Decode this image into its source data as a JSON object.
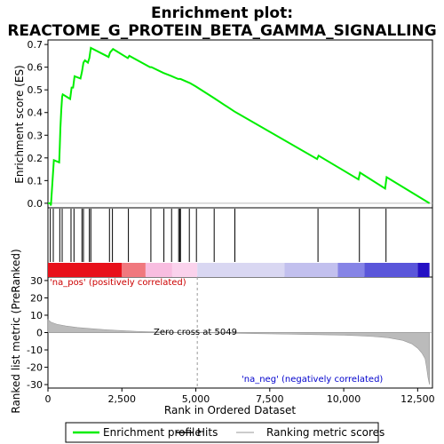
{
  "chart_data": {
    "type": "line",
    "title_line1": "Enrichment plot:",
    "title_line2": "REACTOME_G_PROTEIN_BETA_GAMMA_SIGNALLING",
    "xlabel": "Rank in Ordered Dataset",
    "ylabel_top": "Enrichment score (ES)",
    "ylabel_bottom": "Ranked list metric (PreRanked)",
    "xlim": [
      0,
      13000
    ],
    "x_ticks": [
      0,
      2500,
      5000,
      7500,
      10000,
      12500
    ],
    "x_tick_labels": [
      "0",
      "2,500",
      "5,000",
      "7,500",
      "10,000",
      "12,500"
    ],
    "es_ylim": [
      -0.02,
      0.72
    ],
    "es_ticks": [
      0.0,
      0.1,
      0.2,
      0.3,
      0.4,
      0.5,
      0.6,
      0.7
    ],
    "es_tick_labels": [
      "0.0",
      "0.1",
      "0.2",
      "0.3",
      "0.4",
      "0.5",
      "0.6",
      "0.7"
    ],
    "metric_ylim": [
      -32,
      32
    ],
    "metric_ticks": [
      -30,
      -20,
      -10,
      0,
      10,
      20,
      30
    ],
    "metric_tick_labels": [
      "-30",
      "-20",
      "-10",
      "0",
      "10",
      "20",
      "30"
    ],
    "es_curve": {
      "x": [
        0,
        80,
        100,
        120,
        150,
        180,
        200,
        380,
        400,
        420,
        450,
        480,
        500,
        750,
        800,
        850,
        900,
        1100,
        1150,
        1200,
        1250,
        1350,
        1400,
        1450,
        2050,
        2100,
        2200,
        2700,
        2750,
        3450,
        3500,
        3900,
        4150,
        4400,
        4450,
        4480,
        4800,
        5000,
        5600,
        6300,
        9100,
        9150,
        10500,
        10550,
        11400,
        11450,
        12900
      ],
      "y": [
        0.0,
        0.0,
        -0.01,
        0.03,
        0.09,
        0.15,
        0.19,
        0.18,
        0.25,
        0.33,
        0.41,
        0.47,
        0.48,
        0.46,
        0.51,
        0.51,
        0.56,
        0.55,
        0.58,
        0.62,
        0.63,
        0.62,
        0.64,
        0.685,
        0.645,
        0.665,
        0.68,
        0.64,
        0.65,
        0.6,
        0.6,
        0.575,
        0.562,
        0.548,
        0.548,
        0.548,
        0.53,
        0.515,
        0.465,
        0.405,
        0.195,
        0.21,
        0.105,
        0.135,
        0.065,
        0.115,
        0.0
      ]
    },
    "hits_x": [
      80,
      180,
      400,
      480,
      780,
      880,
      1150,
      1200,
      1400,
      1450,
      2080,
      2180,
      2720,
      3480,
      3920,
      4180,
      4420,
      4460,
      4480,
      4780,
      5020,
      5620,
      6320,
      9130,
      10530,
      11430
    ],
    "metric_curve": {
      "x": [
        0,
        100,
        300,
        600,
        1000,
        1500,
        2000,
        2500,
        3000,
        3500,
        4000,
        4500,
        5049,
        6000,
        7000,
        8000,
        9000,
        10000,
        10500,
        11000,
        11500,
        12000,
        12300,
        12500,
        12650,
        12750,
        12800,
        12850,
        12900
      ],
      "y": [
        7.5,
        6.0,
        4.8,
        3.8,
        2.9,
        2.2,
        1.6,
        1.1,
        0.7,
        0.4,
        0.2,
        0.1,
        0.0,
        -0.3,
        -0.6,
        -0.9,
        -1.2,
        -1.5,
        -1.8,
        -2.3,
        -3.0,
        -4.5,
        -6.5,
        -9.0,
        -12.0,
        -15.0,
        -20.0,
        -26.0,
        -30.0
      ]
    },
    "zero_cross_x": 5049,
    "zero_cross_label": "Zero cross at 5049",
    "pos_label": "'na_pos' (positively correlated)",
    "neg_label": "'na_neg' (negatively correlated)",
    "colorbar_segments": [
      {
        "x0": 0,
        "x1": 2500,
        "color": "#e8101a"
      },
      {
        "x0": 2500,
        "x1": 3300,
        "color": "#f0787e"
      },
      {
        "x0": 3300,
        "x1": 4200,
        "color": "#f8bde0"
      },
      {
        "x0": 4200,
        "x1": 5049,
        "color": "#fad2ec"
      },
      {
        "x0": 5049,
        "x1": 8000,
        "color": "#d9d7f2"
      },
      {
        "x0": 8000,
        "x1": 9800,
        "color": "#c2c0ee"
      },
      {
        "x0": 9800,
        "x1": 10700,
        "color": "#8684e6"
      },
      {
        "x0": 10700,
        "x1": 12500,
        "color": "#5a56da"
      },
      {
        "x0": 12500,
        "x1": 12900,
        "color": "#2410c4"
      }
    ],
    "legend": [
      {
        "label": "Enrichment profile",
        "color": "#00ee00",
        "kind": "line"
      },
      {
        "label": "Hits",
        "color": "#000000",
        "kind": "line"
      },
      {
        "label": "Ranking metric scores",
        "color": "#bbbbbb",
        "kind": "line"
      }
    ],
    "colors": {
      "es_line": "#00ee00",
      "metric_fill": "#bbbbbb",
      "pos_label": "#cc0000",
      "neg_label": "#0000cc"
    }
  }
}
